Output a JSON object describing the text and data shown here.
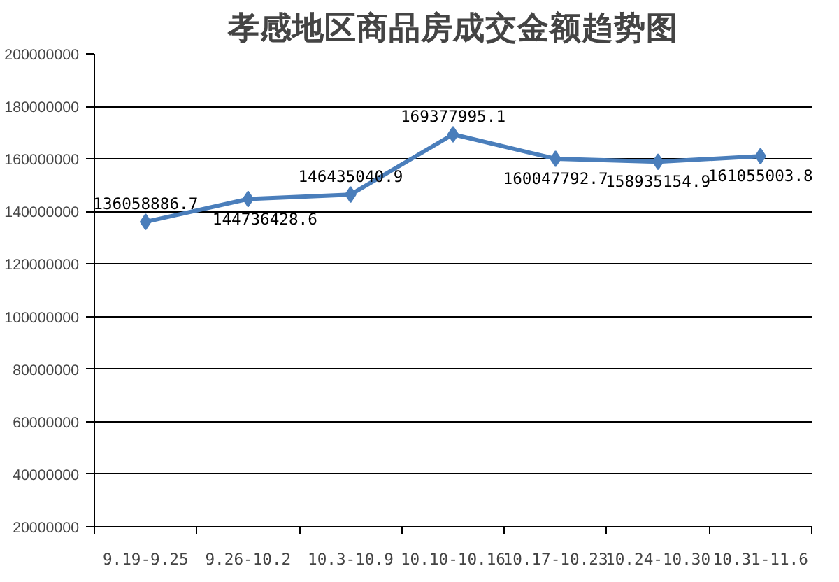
{
  "chart_data": {
    "type": "line",
    "title": "孝感地区商品房成交金额趋势图",
    "categories": [
      "9.19-9.25",
      "9.26-10.2",
      "10.3-10.9",
      "10.10-10.16",
      "10.17-10.23",
      "10.24-10.30",
      "10.31-11.6"
    ],
    "series": [
      {
        "color": "#4a7ebb",
        "values": [
          136058886.7,
          144736428.6,
          146435040.9,
          169377995.1,
          160047792.7,
          158935154.9,
          161055003.8
        ]
      }
    ],
    "ylim": [
      20000000,
      200000000
    ],
    "yticks": [
      20000000,
      40000000,
      60000000,
      80000000,
      100000000,
      120000000,
      140000000,
      160000000,
      180000000,
      200000000
    ],
    "grid": "y",
    "marker": "diamond",
    "line_style": "solid",
    "data_labels": true
  }
}
